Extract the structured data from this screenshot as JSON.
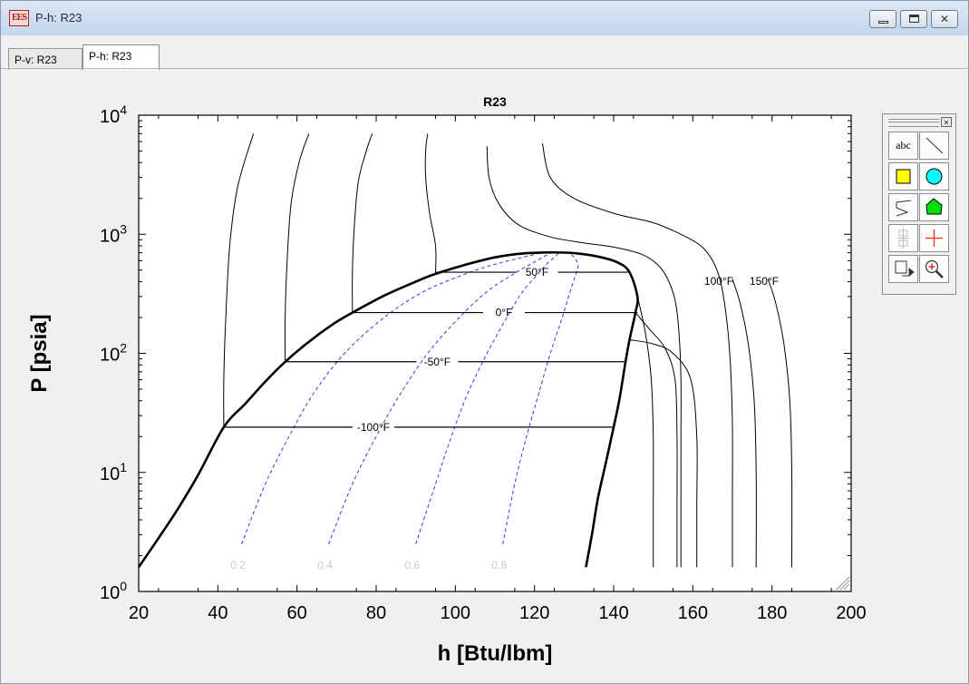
{
  "window": {
    "title": "P-h: R23",
    "app_icon_text": "EES",
    "controls": [
      "minimize-icon",
      "restore-icon",
      "close-icon"
    ]
  },
  "tabs": [
    {
      "label": "P-v: R23",
      "active": false
    },
    {
      "label": "P-h: R23",
      "active": true
    }
  ],
  "toolbox": {
    "close_glyph": "×",
    "tools": [
      {
        "name": "text-tool",
        "icon": "text-abc-icon",
        "label": "abc"
      },
      {
        "name": "line-tool",
        "icon": "line-icon"
      },
      {
        "name": "rectangle-tool",
        "icon": "yellow-square-icon"
      },
      {
        "name": "ellipse-tool",
        "icon": "cyan-circle-icon"
      },
      {
        "name": "polyline-tool",
        "icon": "polyline-icon"
      },
      {
        "name": "polygon-tool",
        "icon": "green-polygon-icon"
      },
      {
        "name": "align-tool",
        "icon": "align-icon"
      },
      {
        "name": "crosshair-tool",
        "icon": "red-crosshair-icon"
      },
      {
        "name": "export-tool",
        "icon": "export-icon"
      },
      {
        "name": "zoom-tool",
        "icon": "zoom-icon"
      }
    ]
  },
  "chart_data": {
    "type": "line",
    "title": "R23",
    "xlabel": "h [Btu/lbm]",
    "ylabel": "P [psia]",
    "xlim": [
      20,
      200
    ],
    "ylim": [
      1,
      10000
    ],
    "yscale": "log",
    "xticks": [
      "20",
      "40",
      "60",
      "80",
      "100",
      "120",
      "140",
      "160",
      "180",
      "200"
    ],
    "yticks": [
      {
        "base": "10",
        "exp": "0"
      },
      {
        "base": "10",
        "exp": "1"
      },
      {
        "base": "10",
        "exp": "2"
      },
      {
        "base": "10",
        "exp": "3"
      },
      {
        "base": "10",
        "exp": "4"
      }
    ],
    "colors": {
      "saturation": "#000000",
      "isotherm": "#000000",
      "quality": "#2f3be8",
      "quality_label": "#c8c8c8"
    },
    "saturation_dome": {
      "liquid": [
        [
          20,
          1.6
        ],
        [
          25,
          2.8
        ],
        [
          30,
          5.0
        ],
        [
          35,
          9.5
        ],
        [
          41.5,
          24
        ],
        [
          47,
          38
        ],
        [
          52,
          58
        ],
        [
          57,
          85
        ],
        [
          63,
          125
        ],
        [
          69,
          175
        ],
        [
          74,
          220
        ],
        [
          82,
          305
        ],
        [
          90,
          400
        ],
        [
          95,
          465
        ],
        [
          103,
          560
        ],
        [
          110,
          640
        ],
        [
          117,
          690
        ],
        [
          124,
          705
        ]
      ],
      "vapor": [
        [
          124,
          705
        ],
        [
          130,
          695
        ],
        [
          136,
          650
        ],
        [
          141,
          580
        ],
        [
          144,
          480
        ],
        [
          146,
          300
        ],
        [
          145.5,
          220
        ],
        [
          144,
          130
        ],
        [
          143,
          85
        ],
        [
          141.5,
          42
        ],
        [
          140,
          24
        ],
        [
          138,
          12
        ],
        [
          136,
          6
        ],
        [
          134.5,
          3
        ],
        [
          133,
          1.6
        ]
      ]
    },
    "isotherms": [
      {
        "label": "",
        "points": [
          [
            41.5,
            24
          ],
          [
            41.5,
            60
          ],
          [
            42,
            200
          ],
          [
            43,
            800
          ],
          [
            45,
            2500
          ],
          [
            49,
            7000
          ]
        ]
      },
      {
        "label": "",
        "points": [
          [
            57,
            85
          ],
          [
            57,
            200
          ],
          [
            57.5,
            600
          ],
          [
            58.5,
            1800
          ],
          [
            60.5,
            4000
          ],
          [
            63,
            7000
          ]
        ]
      },
      {
        "label": "",
        "points": [
          [
            74,
            220
          ],
          [
            74,
            500
          ],
          [
            74.5,
            1200
          ],
          [
            75.5,
            2800
          ],
          [
            77.5,
            5000
          ],
          [
            79,
            7000
          ]
        ]
      },
      {
        "label": "",
        "points": [
          [
            95,
            465
          ],
          [
            95,
            800
          ],
          [
            93.5,
            1500
          ],
          [
            92.5,
            3000
          ],
          [
            92.5,
            5000
          ],
          [
            93,
            7000
          ]
        ]
      },
      {
        "label": "",
        "points": [
          [
            108,
            5500
          ],
          [
            108.5,
            3000
          ],
          [
            111,
            1800
          ],
          [
            116,
            1200
          ],
          [
            124,
            950
          ],
          [
            132,
            850
          ],
          [
            140,
            780
          ],
          [
            147,
            680
          ],
          [
            151,
            560
          ],
          [
            153.5,
            430
          ],
          [
            155.5,
            280
          ],
          [
            156.5,
            150
          ],
          [
            157,
            60
          ],
          [
            157,
            20
          ],
          [
            157,
            6
          ],
          [
            157,
            1.6
          ]
        ]
      },
      {
        "label": "",
        "points": [
          [
            122,
            5800
          ],
          [
            124,
            3000
          ],
          [
            130,
            2000
          ],
          [
            140,
            1500
          ],
          [
            150,
            1250
          ],
          [
            157,
            1000
          ],
          [
            162,
            800
          ],
          [
            165,
            600
          ],
          [
            167,
            400
          ],
          [
            168.5,
            200
          ],
          [
            169.5,
            80
          ],
          [
            170,
            25
          ],
          [
            170,
            6
          ],
          [
            170,
            1.6
          ]
        ]
      }
    ],
    "isotherm_verticals": [
      {
        "points": [
          [
            146,
            300
          ],
          [
            148,
            150
          ],
          [
            149.5,
            60
          ],
          [
            150,
            20
          ],
          [
            150,
            5
          ],
          [
            150,
            1.6
          ]
        ]
      },
      {
        "points": [
          [
            145.5,
            220
          ],
          [
            149,
            160
          ],
          [
            153,
            110
          ],
          [
            155.5,
            60
          ],
          [
            156,
            20
          ],
          [
            156,
            5
          ],
          [
            156,
            1.6
          ]
        ]
      },
      {
        "points": [
          [
            144,
            130
          ],
          [
            150,
            120
          ],
          [
            155,
            100
          ],
          [
            159.5,
            60
          ],
          [
            161,
            20
          ],
          [
            161,
            5
          ],
          [
            161,
            1.6
          ]
        ]
      }
    ],
    "isobars": [
      {
        "label": "50°F",
        "P": 480,
        "h": [
          95,
          144
        ]
      },
      {
        "label": "0°F",
        "P": 220,
        "h": [
          74,
          146
        ]
      },
      {
        "label": "-50°F",
        "P": 85,
        "h": [
          57,
          143
        ]
      },
      {
        "label": "-100°F",
        "P": 24,
        "h": [
          41.5,
          140
        ]
      }
    ],
    "superheat_labels": [
      "100°F",
      "150°F"
    ],
    "quality_lines": [
      {
        "label": "0.2",
        "points": [
          [
            46,
            2.5
          ],
          [
            52,
            8
          ],
          [
            58,
            20
          ],
          [
            64,
            45
          ],
          [
            72,
            100
          ],
          [
            82,
            200
          ],
          [
            92,
            330
          ],
          [
            103,
            470
          ],
          [
            110,
            560
          ],
          [
            117,
            640
          ],
          [
            121,
            690
          ]
        ]
      },
      {
        "label": "0.4",
        "points": [
          [
            68,
            2.5
          ],
          [
            74,
            8
          ],
          [
            80,
            20
          ],
          [
            86,
            45
          ],
          [
            93,
            100
          ],
          [
            101,
            200
          ],
          [
            108,
            330
          ],
          [
            115,
            470
          ],
          [
            119,
            560
          ],
          [
            122,
            640
          ],
          [
            124,
            690
          ]
        ]
      },
      {
        "label": "0.6",
        "points": [
          [
            90,
            2.5
          ],
          [
            95,
            8
          ],
          [
            99,
            20
          ],
          [
            103,
            45
          ],
          [
            108,
            100
          ],
          [
            113,
            200
          ],
          [
            117,
            330
          ],
          [
            121,
            470
          ],
          [
            123,
            560
          ],
          [
            125,
            640
          ],
          [
            126,
            690
          ]
        ]
      },
      {
        "label": "0.8",
        "points": [
          [
            112,
            2.5
          ],
          [
            115,
            8
          ],
          [
            118,
            20
          ],
          [
            121,
            45
          ],
          [
            124,
            100
          ],
          [
            127,
            200
          ],
          [
            129,
            330
          ],
          [
            130.5,
            470
          ],
          [
            131,
            560
          ],
          [
            130,
            640
          ],
          [
            129,
            690
          ]
        ]
      }
    ]
  }
}
